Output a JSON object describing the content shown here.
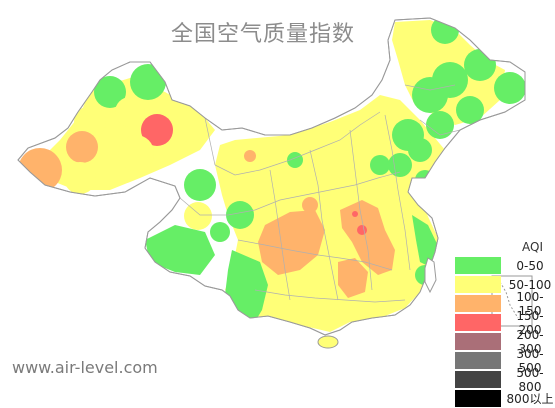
{
  "title": "全国空气质量指数",
  "watermark": "www.air-level.com",
  "legend": {
    "title": "AQI",
    "items": [
      {
        "label": "0-50",
        "color": "#66ee66"
      },
      {
        "label": "50-100",
        "color": "#ffff77"
      },
      {
        "label": "100-150",
        "color": "#ffb36b"
      },
      {
        "label": "150-200",
        "color": "#ff6666"
      },
      {
        "label": "200-300",
        "color": "#aa6f78"
      },
      {
        "label": "300-500",
        "color": "#777777"
      },
      {
        "label": "500-800",
        "color": "#444444"
      },
      {
        "label": "800以上",
        "color": "#000000"
      }
    ]
  },
  "colors": {
    "land": "#ffffff",
    "border": "#9a9a9a",
    "province": "#b0b0b0"
  }
}
